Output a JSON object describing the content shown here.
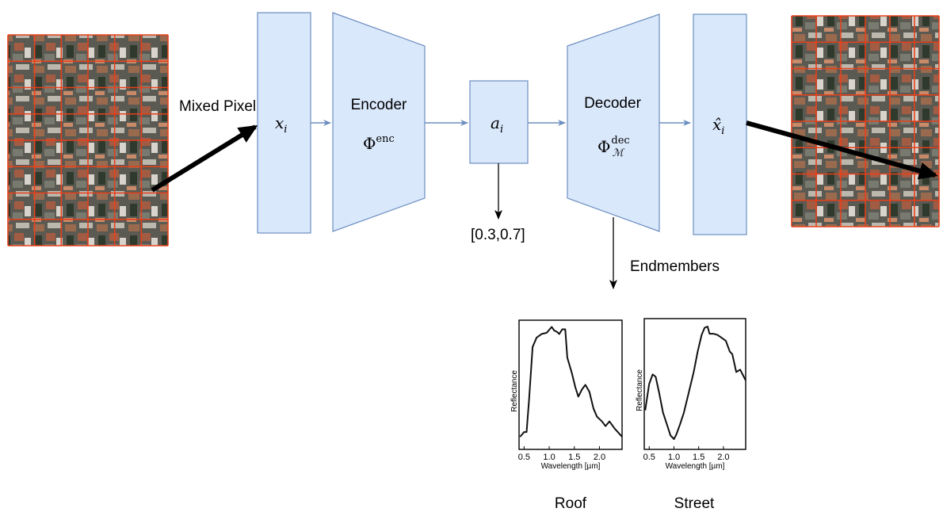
{
  "labels": {
    "mixed_pixel": "Mixed Pixel",
    "encoder": "Encoder",
    "decoder": "Decoder",
    "abundance_values": "[0.3,0.7]",
    "endmembers": "Endmembers"
  },
  "math": {
    "x_i_base": "x",
    "x_i_sub": "i",
    "phi_enc_base": "Φ",
    "phi_enc_sup": "enc",
    "a_i_base": "a",
    "a_i_sub": "i",
    "phi_dec_base": "Φ",
    "phi_dec_sup": "dec",
    "phi_dec_sub": "ℳ",
    "xhat_i_base": "x̂",
    "xhat_i_sub": "i"
  },
  "colors": {
    "block_fill": "#dae8fc",
    "block_stroke": "#6c8ebf",
    "connector": "#6c8ebf",
    "grid_line": "#e8401c",
    "aerial_base": "#5a5a52"
  },
  "endmember_plots": [
    {
      "caption": "Roof",
      "ylabel": "Reflectance",
      "xlabel": "Wavelength [µm]",
      "xticks": [
        "0.5",
        "1.0",
        "1.5",
        "2.0"
      ],
      "xlim": [
        0.4,
        2.45
      ],
      "ylim": [
        0,
        1
      ],
      "curve": [
        [
          0.42,
          0.06
        ],
        [
          0.5,
          0.1
        ],
        [
          0.55,
          0.1
        ],
        [
          0.6,
          0.38
        ],
        [
          0.67,
          0.82
        ],
        [
          0.75,
          0.9
        ],
        [
          0.85,
          0.93
        ],
        [
          0.95,
          0.94
        ],
        [
          1.05,
          0.99
        ],
        [
          1.1,
          0.96
        ],
        [
          1.15,
          0.95
        ],
        [
          1.2,
          0.93
        ],
        [
          1.26,
          0.97
        ],
        [
          1.32,
          0.97
        ],
        [
          1.36,
          0.73
        ],
        [
          1.45,
          0.6
        ],
        [
          1.52,
          0.48
        ],
        [
          1.58,
          0.4
        ],
        [
          1.65,
          0.46
        ],
        [
          1.72,
          0.5
        ],
        [
          1.8,
          0.44
        ],
        [
          1.88,
          0.3
        ],
        [
          1.95,
          0.23
        ],
        [
          2.05,
          0.19
        ],
        [
          2.12,
          0.15
        ],
        [
          2.2,
          0.19
        ],
        [
          2.3,
          0.13
        ],
        [
          2.45,
          0.06
        ]
      ]
    },
    {
      "caption": "Street",
      "ylabel": "Reflectance",
      "xlabel": "Wavelength [µm]",
      "xticks": [
        "0.5",
        "1.0",
        "1.5",
        "2.0"
      ],
      "xlim": [
        0.4,
        2.45
      ],
      "ylim": [
        0,
        1
      ],
      "curve": [
        [
          0.42,
          0.28
        ],
        [
          0.5,
          0.5
        ],
        [
          0.57,
          0.58
        ],
        [
          0.63,
          0.56
        ],
        [
          0.7,
          0.43
        ],
        [
          0.78,
          0.26
        ],
        [
          0.86,
          0.16
        ],
        [
          0.93,
          0.07
        ],
        [
          1.0,
          0.04
        ],
        [
          1.05,
          0.08
        ],
        [
          1.12,
          0.16
        ],
        [
          1.2,
          0.26
        ],
        [
          1.3,
          0.43
        ],
        [
          1.4,
          0.6
        ],
        [
          1.48,
          0.77
        ],
        [
          1.56,
          0.91
        ],
        [
          1.62,
          0.97
        ],
        [
          1.68,
          0.98
        ],
        [
          1.72,
          0.92
        ],
        [
          1.8,
          0.92
        ],
        [
          1.88,
          0.91
        ],
        [
          1.95,
          0.89
        ],
        [
          2.05,
          0.86
        ],
        [
          2.13,
          0.77
        ],
        [
          2.18,
          0.75
        ],
        [
          2.26,
          0.6
        ],
        [
          2.34,
          0.62
        ],
        [
          2.45,
          0.53
        ]
      ]
    }
  ]
}
